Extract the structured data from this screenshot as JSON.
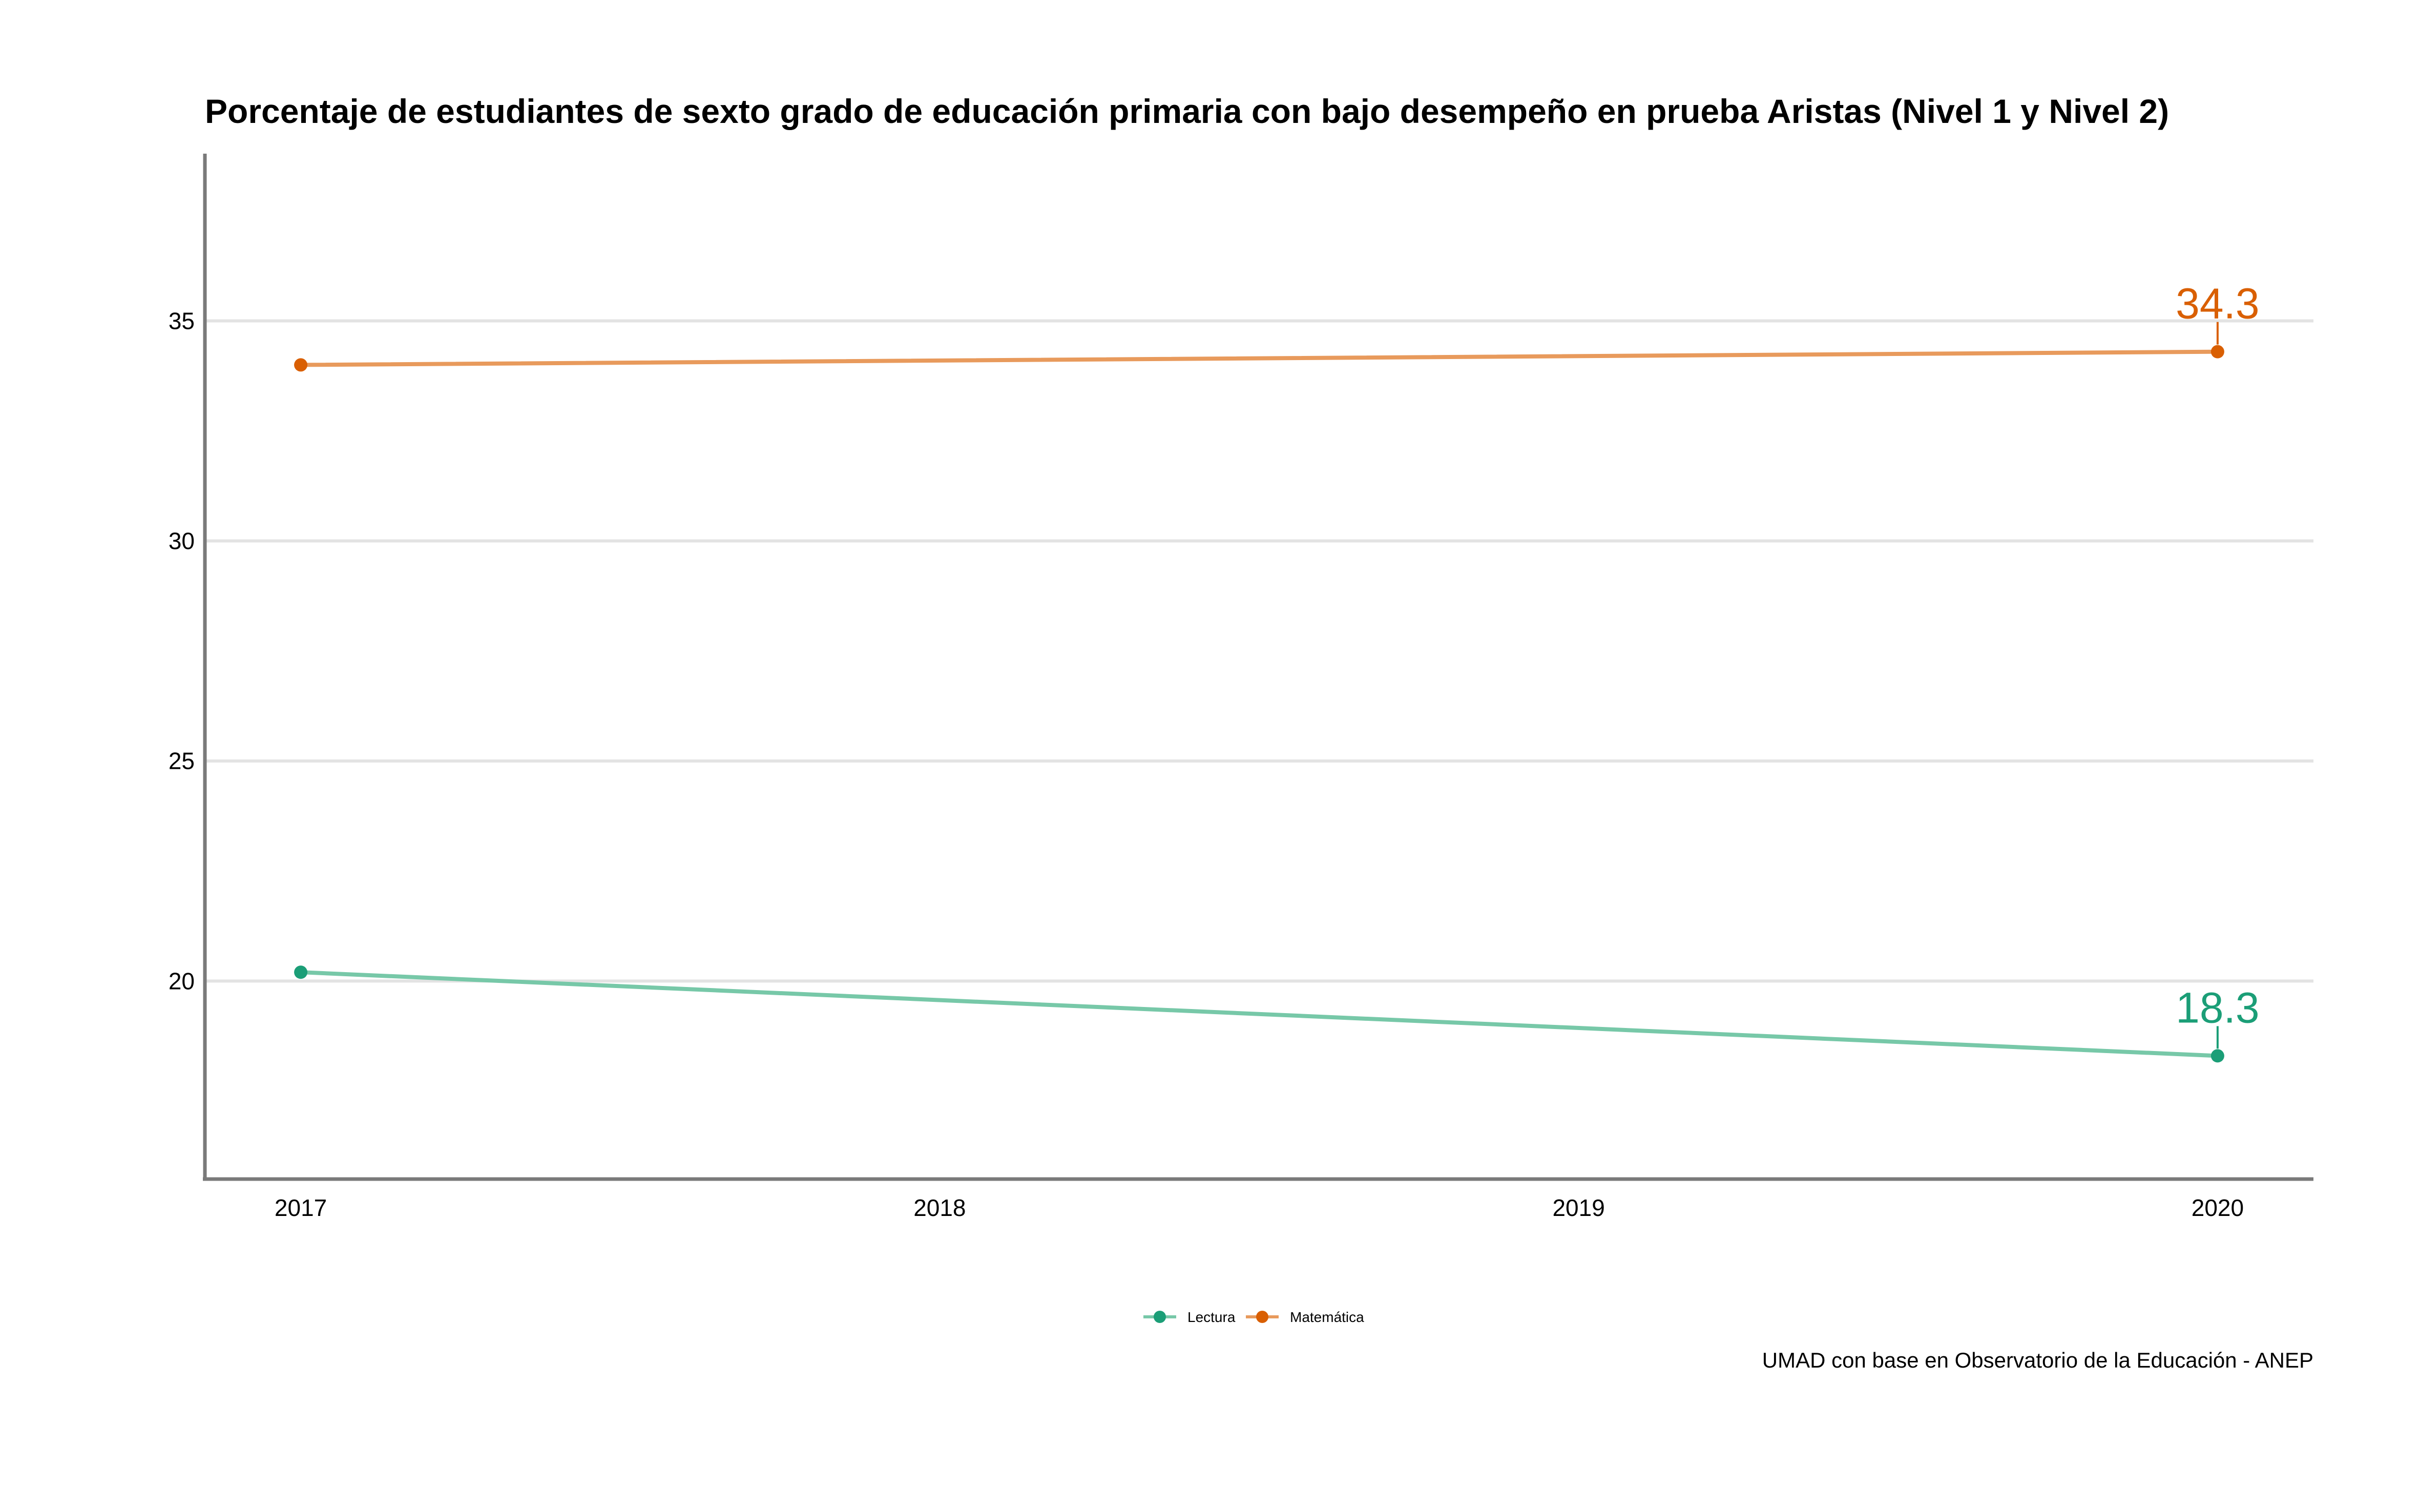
{
  "chart_data": {
    "type": "line",
    "title": "Porcentaje de estudiantes de sexto grado de educación primaria con bajo desempeño en prueba Aristas (Nivel 1 y Nivel 2)",
    "xlabel": "",
    "ylabel": "",
    "x": [
      2017,
      2018,
      2019,
      2020
    ],
    "x_tick_labels": [
      "2017",
      "2018",
      "2019",
      "2020"
    ],
    "y_ticks": [
      20,
      25,
      30,
      35
    ],
    "y_tick_labels": [
      "20",
      "25",
      "30",
      "35"
    ],
    "xlim": [
      2016.85,
      2020.15
    ],
    "ylim": [
      15.5,
      38.8
    ],
    "grid": "horizontal",
    "legend_position": "bottom",
    "series": [
      {
        "name": "Lectura",
        "color": "#1b9e77",
        "line_color": "#77c8a8",
        "points": [
          {
            "x": 2017,
            "y": 20.2
          },
          {
            "x": 2020,
            "y": 18.3
          }
        ],
        "end_label": "18.3"
      },
      {
        "name": "Matemática",
        "color": "#d95f02",
        "line_color": "#e89a5c",
        "points": [
          {
            "x": 2017,
            "y": 34.0
          },
          {
            "x": 2020,
            "y": 34.3
          }
        ],
        "end_label": "34.3"
      }
    ],
    "caption": "UMAD con base en Observatorio de la Educación - ANEP"
  }
}
